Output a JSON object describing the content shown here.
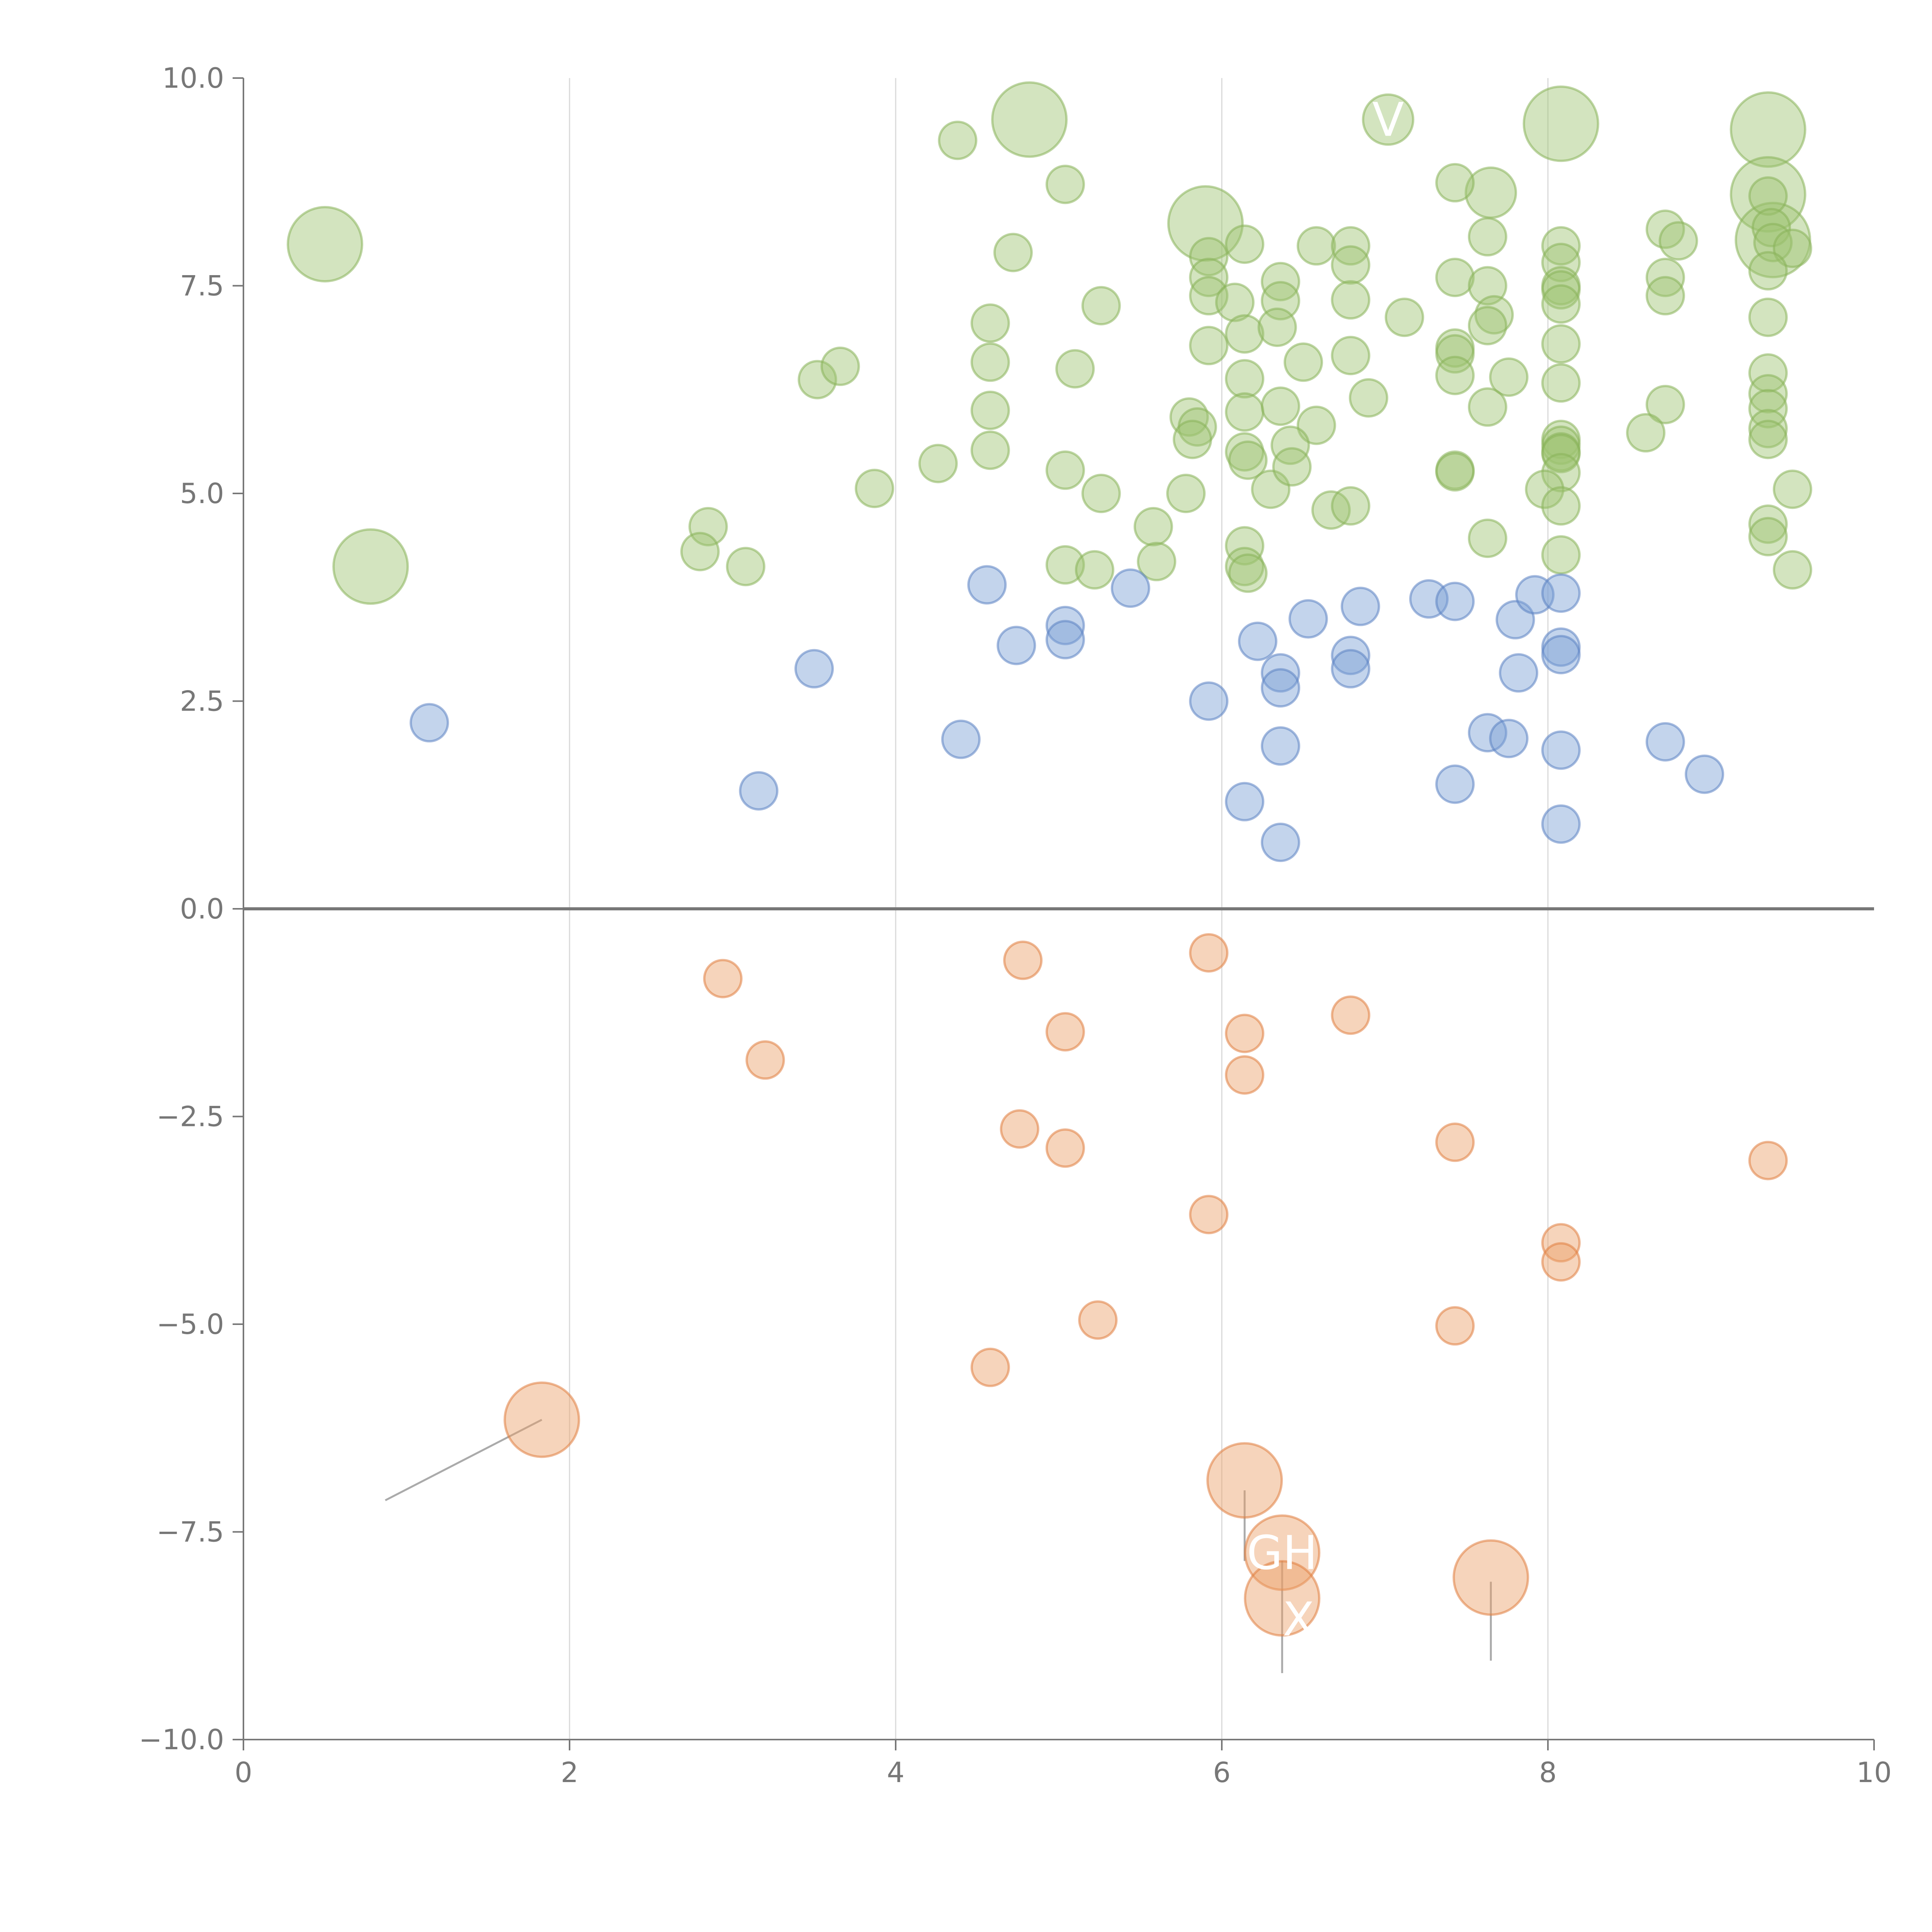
{
  "chart_data": {
    "type": "scatter",
    "subtype": "bubble",
    "title": "",
    "xlabel": "",
    "ylabel": "",
    "xlim": [
      0,
      10
    ],
    "ylim": [
      -10,
      10
    ],
    "grid": "vertical",
    "zero_line": true,
    "x_ticks": [
      "0",
      "2",
      "4",
      "6",
      "8",
      "10"
    ],
    "y_ticks": [
      "10.0",
      "7.5",
      "5.0",
      "2.5",
      "0.0",
      "−2.5",
      "−5.0",
      "−7.5",
      "−10.0"
    ],
    "colors": {
      "green_fill": "#9dc470",
      "green_stroke": "#88b35a",
      "blue_fill": "#7b9fd4",
      "blue_stroke": "#5b82c2",
      "orange_fill": "#ec9f68",
      "orange_stroke": "#e07e3f",
      "axis": "#777777",
      "grid": "#d9d9d9",
      "zero_line": "#777777",
      "leader": "#aaaaaa"
    },
    "series": [
      {
        "name": "green",
        "color_key": "green",
        "points": [
          {
            "x": 0.5,
            "y": 8.0,
            "s": 3
          },
          {
            "x": 0.78,
            "y": 4.12,
            "s": 3
          },
          {
            "x": 4.82,
            "y": 9.5,
            "s": 3
          },
          {
            "x": 5.9,
            "y": 8.25,
            "s": 3
          },
          {
            "x": 8.08,
            "y": 9.45,
            "s": 3
          },
          {
            "x": 9.35,
            "y": 9.38,
            "s": 3
          },
          {
            "x": 9.35,
            "y": 8.6,
            "s": 3
          },
          {
            "x": 9.38,
            "y": 8.05,
            "s": 3
          },
          {
            "x": 7.02,
            "y": 9.5,
            "s": 1.3
          },
          {
            "x": 7.65,
            "y": 8.62,
            "s": 1.3
          },
          {
            "x": 4.38,
            "y": 9.25,
            "s": 1
          },
          {
            "x": 5.04,
            "y": 8.72,
            "s": 1
          },
          {
            "x": 4.72,
            "y": 7.9,
            "s": 1
          },
          {
            "x": 5.26,
            "y": 7.26,
            "s": 1
          },
          {
            "x": 4.58,
            "y": 7.05,
            "s": 1
          },
          {
            "x": 4.58,
            "y": 6.58,
            "s": 1
          },
          {
            "x": 5.1,
            "y": 6.5,
            "s": 1
          },
          {
            "x": 3.52,
            "y": 6.37,
            "s": 1
          },
          {
            "x": 3.66,
            "y": 6.53,
            "s": 1
          },
          {
            "x": 4.58,
            "y": 6.0,
            "s": 1
          },
          {
            "x": 4.58,
            "y": 5.52,
            "s": 1
          },
          {
            "x": 4.26,
            "y": 5.36,
            "s": 1
          },
          {
            "x": 3.87,
            "y": 5.06,
            "s": 1
          },
          {
            "x": 5.04,
            "y": 5.28,
            "s": 1
          },
          {
            "x": 5.26,
            "y": 5.0,
            "s": 1
          },
          {
            "x": 2.85,
            "y": 4.6,
            "s": 1
          },
          {
            "x": 2.8,
            "y": 4.3,
            "s": 1
          },
          {
            "x": 3.08,
            "y": 4.12,
            "s": 1
          },
          {
            "x": 5.04,
            "y": 4.14,
            "s": 1
          },
          {
            "x": 5.22,
            "y": 4.08,
            "s": 1
          },
          {
            "x": 5.92,
            "y": 7.85,
            "s": 1
          },
          {
            "x": 5.92,
            "y": 7.6,
            "s": 1
          },
          {
            "x": 5.92,
            "y": 7.38,
            "s": 1
          },
          {
            "x": 6.14,
            "y": 8.0,
            "s": 1
          },
          {
            "x": 6.08,
            "y": 7.3,
            "s": 1
          },
          {
            "x": 6.14,
            "y": 6.92,
            "s": 1
          },
          {
            "x": 5.92,
            "y": 6.78,
            "s": 1
          },
          {
            "x": 5.8,
            "y": 5.92,
            "s": 1
          },
          {
            "x": 5.85,
            "y": 5.8,
            "s": 1
          },
          {
            "x": 5.82,
            "y": 5.65,
            "s": 1
          },
          {
            "x": 5.78,
            "y": 5.0,
            "s": 1
          },
          {
            "x": 5.58,
            "y": 4.6,
            "s": 1
          },
          {
            "x": 5.6,
            "y": 4.18,
            "s": 1
          },
          {
            "x": 6.14,
            "y": 6.38,
            "s": 1
          },
          {
            "x": 6.14,
            "y": 5.98,
            "s": 1
          },
          {
            "x": 6.14,
            "y": 5.5,
            "s": 1
          },
          {
            "x": 6.16,
            "y": 5.4,
            "s": 1
          },
          {
            "x": 6.3,
            "y": 5.05,
            "s": 1
          },
          {
            "x": 6.14,
            "y": 4.37,
            "s": 1
          },
          {
            "x": 6.14,
            "y": 4.12,
            "s": 1
          },
          {
            "x": 6.16,
            "y": 4.04,
            "s": 1
          },
          {
            "x": 6.36,
            "y": 7.55,
            "s": 1
          },
          {
            "x": 6.36,
            "y": 7.32,
            "s": 1
          },
          {
            "x": 6.34,
            "y": 7.0,
            "s": 1
          },
          {
            "x": 6.58,
            "y": 7.98,
            "s": 1
          },
          {
            "x": 6.5,
            "y": 6.58,
            "s": 1
          },
          {
            "x": 6.36,
            "y": 6.05,
            "s": 1
          },
          {
            "x": 6.58,
            "y": 5.82,
            "s": 1
          },
          {
            "x": 6.42,
            "y": 5.58,
            "s": 1
          },
          {
            "x": 6.43,
            "y": 5.32,
            "s": 1
          },
          {
            "x": 6.79,
            "y": 7.98,
            "s": 1
          },
          {
            "x": 6.79,
            "y": 7.75,
            "s": 1
          },
          {
            "x": 6.79,
            "y": 7.33,
            "s": 1
          },
          {
            "x": 7.12,
            "y": 7.12,
            "s": 1
          },
          {
            "x": 6.79,
            "y": 6.66,
            "s": 1
          },
          {
            "x": 6.9,
            "y": 6.15,
            "s": 1
          },
          {
            "x": 6.67,
            "y": 4.8,
            "s": 1
          },
          {
            "x": 6.79,
            "y": 4.85,
            "s": 1
          },
          {
            "x": 7.43,
            "y": 8.74,
            "s": 1
          },
          {
            "x": 7.63,
            "y": 8.09,
            "s": 1
          },
          {
            "x": 7.43,
            "y": 7.6,
            "s": 1
          },
          {
            "x": 7.63,
            "y": 7.5,
            "s": 1
          },
          {
            "x": 7.67,
            "y": 7.15,
            "s": 1
          },
          {
            "x": 7.63,
            "y": 7.02,
            "s": 1
          },
          {
            "x": 7.43,
            "y": 6.75,
            "s": 1
          },
          {
            "x": 7.43,
            "y": 6.68,
            "s": 1
          },
          {
            "x": 7.43,
            "y": 6.42,
            "s": 1
          },
          {
            "x": 7.76,
            "y": 6.4,
            "s": 1
          },
          {
            "x": 7.63,
            "y": 6.04,
            "s": 1
          },
          {
            "x": 7.43,
            "y": 5.28,
            "s": 1
          },
          {
            "x": 7.43,
            "y": 5.26,
            "s": 1
          },
          {
            "x": 7.63,
            "y": 4.46,
            "s": 1
          },
          {
            "x": 8.08,
            "y": 7.98,
            "s": 1
          },
          {
            "x": 8.08,
            "y": 7.78,
            "s": 1
          },
          {
            "x": 8.08,
            "y": 7.5,
            "s": 1
          },
          {
            "x": 8.08,
            "y": 7.45,
            "s": 1
          },
          {
            "x": 8.08,
            "y": 7.28,
            "s": 1
          },
          {
            "x": 8.08,
            "y": 6.8,
            "s": 1
          },
          {
            "x": 8.08,
            "y": 6.33,
            "s": 1
          },
          {
            "x": 8.08,
            "y": 5.65,
            "s": 1
          },
          {
            "x": 8.08,
            "y": 5.58,
            "s": 1
          },
          {
            "x": 8.08,
            "y": 5.5,
            "s": 1
          },
          {
            "x": 8.08,
            "y": 5.48,
            "s": 1
          },
          {
            "x": 8.08,
            "y": 5.25,
            "s": 1
          },
          {
            "x": 7.98,
            "y": 5.05,
            "s": 1
          },
          {
            "x": 8.08,
            "y": 4.85,
            "s": 1
          },
          {
            "x": 8.08,
            "y": 4.26,
            "s": 1
          },
          {
            "x": 8.72,
            "y": 8.18,
            "s": 1
          },
          {
            "x": 8.8,
            "y": 8.04,
            "s": 1
          },
          {
            "x": 8.72,
            "y": 7.6,
            "s": 1
          },
          {
            "x": 8.72,
            "y": 7.38,
            "s": 1
          },
          {
            "x": 8.72,
            "y": 6.07,
            "s": 1
          },
          {
            "x": 8.6,
            "y": 5.73,
            "s": 1
          },
          {
            "x": 9.35,
            "y": 8.58,
            "s": 1
          },
          {
            "x": 9.37,
            "y": 8.2,
            "s": 1
          },
          {
            "x": 9.38,
            "y": 8.02,
            "s": 1
          },
          {
            "x": 9.5,
            "y": 7.95,
            "s": 1
          },
          {
            "x": 9.35,
            "y": 7.68,
            "s": 1
          },
          {
            "x": 9.35,
            "y": 7.12,
            "s": 1
          },
          {
            "x": 9.35,
            "y": 6.45,
            "s": 1
          },
          {
            "x": 9.35,
            "y": 6.2,
            "s": 1
          },
          {
            "x": 9.35,
            "y": 6.02,
            "s": 1
          },
          {
            "x": 9.35,
            "y": 5.78,
            "s": 1
          },
          {
            "x": 9.35,
            "y": 5.65,
            "s": 1
          },
          {
            "x": 9.35,
            "y": 4.63,
            "s": 1
          },
          {
            "x": 9.35,
            "y": 4.48,
            "s": 1
          },
          {
            "x": 9.5,
            "y": 5.05,
            "s": 1
          },
          {
            "x": 9.5,
            "y": 4.08,
            "s": 1
          }
        ]
      },
      {
        "name": "blue",
        "color_key": "blue",
        "points": [
          {
            "x": 1.14,
            "y": 2.24,
            "s": 1
          },
          {
            "x": 3.16,
            "y": 1.42,
            "s": 1
          },
          {
            "x": 3.5,
            "y": 2.89,
            "s": 1
          },
          {
            "x": 4.4,
            "y": 2.04,
            "s": 1
          },
          {
            "x": 4.56,
            "y": 3.9,
            "s": 1
          },
          {
            "x": 4.74,
            "y": 3.17,
            "s": 1
          },
          {
            "x": 5.04,
            "y": 3.41,
            "s": 1
          },
          {
            "x": 5.04,
            "y": 3.24,
            "s": 1
          },
          {
            "x": 5.44,
            "y": 3.86,
            "s": 1
          },
          {
            "x": 5.92,
            "y": 2.5,
            "s": 1
          },
          {
            "x": 6.14,
            "y": 1.29,
            "s": 1
          },
          {
            "x": 6.22,
            "y": 3.22,
            "s": 1
          },
          {
            "x": 6.36,
            "y": 2.84,
            "s": 1
          },
          {
            "x": 6.36,
            "y": 2.66,
            "s": 1
          },
          {
            "x": 6.36,
            "y": 1.96,
            "s": 1
          },
          {
            "x": 6.36,
            "y": 0.8,
            "s": 1
          },
          {
            "x": 6.53,
            "y": 3.49,
            "s": 1
          },
          {
            "x": 6.79,
            "y": 3.05,
            "s": 1
          },
          {
            "x": 6.79,
            "y": 2.89,
            "s": 1
          },
          {
            "x": 6.85,
            "y": 3.64,
            "s": 1
          },
          {
            "x": 7.27,
            "y": 3.73,
            "s": 1
          },
          {
            "x": 7.43,
            "y": 3.7,
            "s": 1
          },
          {
            "x": 7.43,
            "y": 1.5,
            "s": 1
          },
          {
            "x": 7.63,
            "y": 2.12,
            "s": 1
          },
          {
            "x": 7.76,
            "y": 2.05,
            "s": 1
          },
          {
            "x": 7.8,
            "y": 3.48,
            "s": 1
          },
          {
            "x": 7.82,
            "y": 2.84,
            "s": 1
          },
          {
            "x": 7.92,
            "y": 3.78,
            "s": 1
          },
          {
            "x": 8.08,
            "y": 3.8,
            "s": 1
          },
          {
            "x": 8.08,
            "y": 3.15,
            "s": 1
          },
          {
            "x": 8.08,
            "y": 3.06,
            "s": 1
          },
          {
            "x": 8.08,
            "y": 1.91,
            "s": 1
          },
          {
            "x": 8.08,
            "y": 1.02,
            "s": 1
          },
          {
            "x": 8.72,
            "y": 2.01,
            "s": 1
          },
          {
            "x": 8.96,
            "y": 1.62,
            "s": 1
          }
        ]
      },
      {
        "name": "orange",
        "color_key": "orange",
        "points": [
          {
            "x": 1.83,
            "y": -6.15,
            "s": 3
          },
          {
            "x": 6.14,
            "y": -6.88,
            "s": 3
          },
          {
            "x": 6.37,
            "y": -7.75,
            "s": 3
          },
          {
            "x": 6.37,
            "y": -8.3,
            "s": 3
          },
          {
            "x": 7.65,
            "y": -8.05,
            "s": 3
          },
          {
            "x": 2.94,
            "y": -0.84,
            "s": 1
          },
          {
            "x": 3.2,
            "y": -1.82,
            "s": 1
          },
          {
            "x": 4.78,
            "y": -0.62,
            "s": 1
          },
          {
            "x": 5.04,
            "y": -1.48,
            "s": 1
          },
          {
            "x": 4.76,
            "y": -2.65,
            "s": 1
          },
          {
            "x": 5.04,
            "y": -2.88,
            "s": 1
          },
          {
            "x": 5.92,
            "y": -0.53,
            "s": 1
          },
          {
            "x": 6.14,
            "y": -1.5,
            "s": 1
          },
          {
            "x": 6.14,
            "y": -2.0,
            "s": 1
          },
          {
            "x": 6.79,
            "y": -1.28,
            "s": 1
          },
          {
            "x": 5.92,
            "y": -3.68,
            "s": 1
          },
          {
            "x": 5.24,
            "y": -4.95,
            "s": 1
          },
          {
            "x": 4.58,
            "y": -5.52,
            "s": 1
          },
          {
            "x": 7.43,
            "y": -2.81,
            "s": 1
          },
          {
            "x": 7.43,
            "y": -5.02,
            "s": 1
          },
          {
            "x": 8.08,
            "y": -4.02,
            "s": 1
          },
          {
            "x": 8.08,
            "y": -4.25,
            "s": 1
          },
          {
            "x": 9.35,
            "y": -3.03,
            "s": 1
          }
        ]
      }
    ],
    "annotations": [
      {
        "text": "GH",
        "x": 6.37,
        "y": -7.75
      },
      {
        "text": "X",
        "x": 6.47,
        "y": -8.55
      },
      {
        "text": "V",
        "x": 7.02,
        "y": 9.5
      }
    ]
  }
}
